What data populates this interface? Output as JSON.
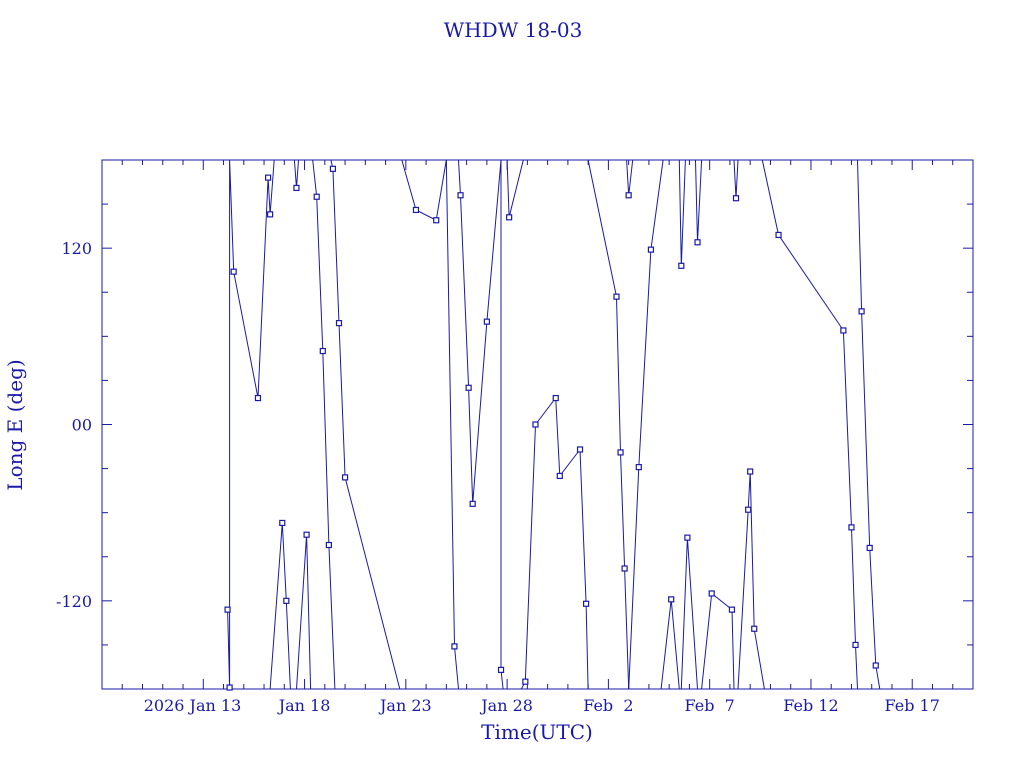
{
  "chart_data": {
    "type": "line",
    "title": "WHDW 18-03",
    "xlabel": "Time(UTC)",
    "ylabel": "Long E (deg)",
    "x_ticks": [
      "2026 Jan 13",
      "Jan 18",
      "Jan 23",
      "Jan 28",
      "Feb  2",
      "Feb  7",
      "Feb 12",
      "Feb 17"
    ],
    "y_ticks": [
      "-120",
      "00",
      "120"
    ],
    "ylim": [
      -180,
      180
    ],
    "xlim": [
      "2026-01-08",
      "2026-02-20"
    ],
    "grid": false,
    "color": "#1a1aa6",
    "series": [
      {
        "values": [
          [
            "2026-01-14.2",
            -126
          ],
          [
            "2026-01-14.3",
            -179
          ],
          [
            "2026-01-14.3",
            180
          ],
          [
            "2026-01-14.5",
            104
          ],
          [
            "2026-01-15.7",
            18
          ],
          [
            "2026-01-16.2",
            168
          ],
          [
            "2026-01-16.3",
            143
          ],
          [
            "2026-01-16.5",
            180
          ],
          [
            "2026-01-16.3",
            -180
          ],
          [
            "2026-01-16.9",
            -67
          ],
          [
            "2026-01-17.1",
            -120
          ],
          [
            "2026-01-17.3",
            -180
          ],
          [
            "2026-01-17.5",
            180
          ],
          [
            "2026-01-17.6",
            161
          ],
          [
            "2026-01-17.7",
            180
          ],
          [
            "2026-01-17.6",
            -180
          ],
          [
            "2026-01-18.1",
            -75
          ],
          [
            "2026-01-18.3",
            -180
          ],
          [
            "2026-01-18.4",
            180
          ],
          [
            "2026-01-18.6",
            155
          ],
          [
            "2026-01-18.9",
            50
          ],
          [
            "2026-01-19.2",
            -82
          ],
          [
            "2026-01-19.5",
            -180
          ],
          [
            "2026-01-19.3",
            180
          ],
          [
            "2026-01-19.4",
            174
          ],
          [
            "2026-01-19.7",
            69
          ],
          [
            "2026-01-20.0",
            -36
          ],
          [
            "2026-01-22.7",
            -180
          ],
          [
            "2026-01-22.8",
            180
          ],
          [
            "2026-01-23.5",
            146
          ],
          [
            "2026-01-24.5",
            139
          ],
          [
            "2026-01-25.0",
            180
          ],
          [
            "2026-01-25.4",
            -151
          ],
          [
            "2026-01-25.6",
            -180
          ],
          [
            "2026-01-25.6",
            180
          ],
          [
            "2026-01-25.7",
            156
          ],
          [
            "2026-01-26.1",
            25
          ],
          [
            "2026-01-26.3",
            -54
          ],
          [
            "2026-01-27.0",
            70
          ],
          [
            "2026-01-27.7",
            180
          ],
          [
            "2026-01-27.7",
            -167
          ],
          [
            "2026-01-27.8",
            -180
          ],
          [
            "2026-01-28.0",
            180
          ],
          [
            "2026-01-28.1",
            141
          ],
          [
            "2026-01-28.8",
            180
          ],
          [
            "2026-01-28.7",
            -180
          ],
          [
            "2026-01-28.9",
            -175
          ],
          [
            "2026-01-29.4",
            0
          ],
          [
            "2026-01-30.4",
            18
          ],
          [
            "2026-01-30.6",
            -35
          ],
          [
            "2026-01-31.6",
            -17
          ],
          [
            "2026-01-31.9",
            -122
          ],
          [
            "2026-02-01.0",
            -180
          ],
          [
            "2026-02-01.0",
            180
          ],
          [
            "2026-02-02.4",
            87
          ],
          [
            "2026-02-02.6",
            -19
          ],
          [
            "2026-02-02.8",
            -98
          ],
          [
            "2026-02-03.0",
            -180
          ],
          [
            "2026-02-02.9",
            180
          ],
          [
            "2026-02-03.0",
            156
          ],
          [
            "2026-02-03.2",
            180
          ],
          [
            "2026-02-03.0",
            -180
          ],
          [
            "2026-02-03.5",
            -29
          ],
          [
            "2026-02-04.1",
            119
          ],
          [
            "2026-02-04.7",
            180
          ],
          [
            "2026-02-04.6",
            -180
          ],
          [
            "2026-02-05.1",
            -119
          ],
          [
            "2026-02-05.5",
            -180
          ],
          [
            "2026-02-05.5",
            180
          ],
          [
            "2026-02-05.6",
            108
          ],
          [
            "2026-02-05.8",
            180
          ],
          [
            "2026-02-05.6",
            -180
          ],
          [
            "2026-02-05.9",
            -77
          ],
          [
            "2026-02-06.4",
            -180
          ],
          [
            "2026-02-06.3",
            180
          ],
          [
            "2026-02-06.4",
            124
          ],
          [
            "2026-02-06.6",
            180
          ],
          [
            "2026-02-06.6",
            -180
          ],
          [
            "2026-02-07.1",
            -115
          ],
          [
            "2026-02-08.1",
            -126
          ],
          [
            "2026-02-08.2",
            -180
          ],
          [
            "2026-02-08.2",
            180
          ],
          [
            "2026-02-08.3",
            154
          ],
          [
            "2026-02-08.4",
            180
          ],
          [
            "2026-02-08.4",
            -180
          ],
          [
            "2026-02-08.9",
            -58
          ],
          [
            "2026-02-09.0",
            -32
          ],
          [
            "2026-02-09.2",
            -139
          ],
          [
            "2026-02-09.7",
            -180
          ],
          [
            "2026-02-09.6",
            180
          ],
          [
            "2026-02-10.4",
            129
          ],
          [
            "2026-02-13.6",
            64
          ],
          [
            "2026-02-14.0",
            -70
          ],
          [
            "2026-02-14.2",
            -150
          ],
          [
            "2026-02-14.3",
            -180
          ],
          [
            "2026-02-14.3",
            180
          ],
          [
            "2026-02-14.5",
            77
          ],
          [
            "2026-02-14.9",
            -84
          ],
          [
            "2026-02-15.2",
            -164
          ],
          [
            "2026-02-15.4",
            -180
          ]
        ]
      }
    ],
    "markers": [
      [
        "2026-01-14.2",
        -126
      ],
      [
        "2026-01-14.3",
        -179
      ],
      [
        "2026-01-14.5",
        104
      ],
      [
        "2026-01-15.7",
        18
      ],
      [
        "2026-01-16.2",
        168
      ],
      [
        "2026-01-16.3",
        143
      ],
      [
        "2026-01-16.9",
        -67
      ],
      [
        "2026-01-17.1",
        -120
      ],
      [
        "2026-01-17.6",
        161
      ],
      [
        "2026-01-18.1",
        -75
      ],
      [
        "2026-01-18.6",
        155
      ],
      [
        "2026-01-18.9",
        50
      ],
      [
        "2026-01-19.2",
        -82
      ],
      [
        "2026-01-19.4",
        174
      ],
      [
        "2026-01-19.7",
        69
      ],
      [
        "2026-01-20.0",
        -36
      ],
      [
        "2026-01-23.5",
        146
      ],
      [
        "2026-01-24.5",
        139
      ],
      [
        "2026-01-25.4",
        -151
      ],
      [
        "2026-01-25.7",
        156
      ],
      [
        "2026-01-26.1",
        25
      ],
      [
        "2026-01-26.3",
        -54
      ],
      [
        "2026-01-27.0",
        70
      ],
      [
        "2026-01-27.7",
        -167
      ],
      [
        "2026-01-28.1",
        141
      ],
      [
        "2026-01-28.9",
        -175
      ],
      [
        "2026-01-29.4",
        0
      ],
      [
        "2026-01-30.4",
        18
      ],
      [
        "2026-01-30.6",
        -35
      ],
      [
        "2026-01-31.6",
        -17
      ],
      [
        "2026-01-31.9",
        -122
      ],
      [
        "2026-02-02.4",
        87
      ],
      [
        "2026-02-02.6",
        -19
      ],
      [
        "2026-02-02.8",
        -98
      ],
      [
        "2026-02-03.0",
        156
      ],
      [
        "2026-02-03.5",
        -29
      ],
      [
        "2026-02-04.1",
        119
      ],
      [
        "2026-02-05.1",
        -119
      ],
      [
        "2026-02-05.6",
        108
      ],
      [
        "2026-02-05.9",
        -77
      ],
      [
        "2026-02-06.4",
        124
      ],
      [
        "2026-02-07.1",
        -115
      ],
      [
        "2026-02-08.1",
        -126
      ],
      [
        "2026-02-08.3",
        154
      ],
      [
        "2026-02-08.9",
        -58
      ],
      [
        "2026-02-09.0",
        -32
      ],
      [
        "2026-02-09.2",
        -139
      ],
      [
        "2026-02-10.4",
        129
      ],
      [
        "2026-02-13.6",
        64
      ],
      [
        "2026-02-14.0",
        -70
      ],
      [
        "2026-02-14.2",
        -150
      ],
      [
        "2026-02-14.5",
        77
      ],
      [
        "2026-02-14.9",
        -84
      ],
      [
        "2026-02-15.2",
        -164
      ]
    ]
  }
}
